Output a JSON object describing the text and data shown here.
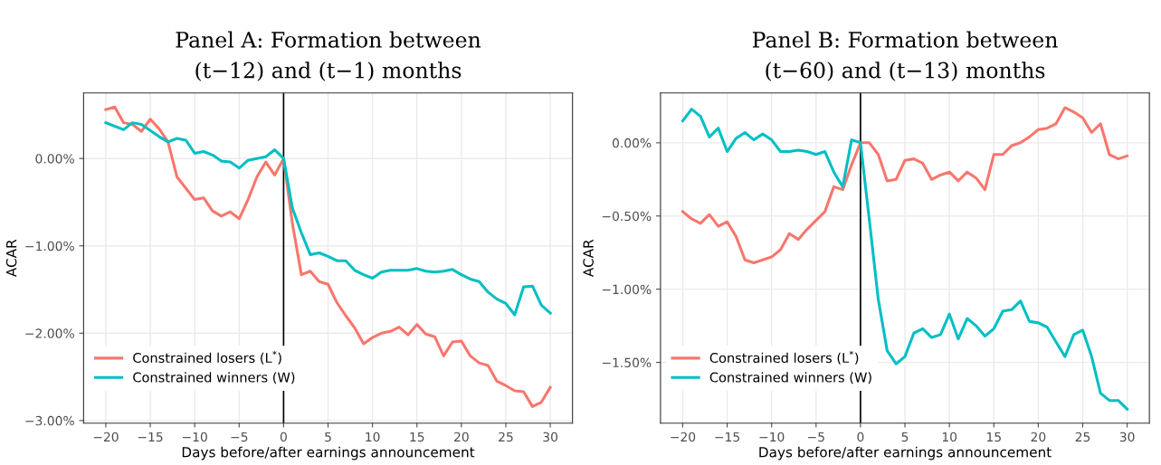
{
  "chart_data": [
    {
      "type": "line",
      "title": "Panel A: Formation between\n(t−12) and (t−1) months",
      "xlabel": "Days before/after earnings announcement",
      "ylabel": "ACAR",
      "x": [
        -20,
        -19,
        -18,
        -17,
        -16,
        -15,
        -14,
        -13,
        -12,
        -11,
        -10,
        -9,
        -8,
        -7,
        -6,
        -5,
        -4,
        -3,
        -2,
        -1,
        0,
        1,
        2,
        3,
        4,
        5,
        6,
        7,
        8,
        9,
        10,
        11,
        12,
        13,
        14,
        15,
        16,
        17,
        18,
        19,
        20,
        21,
        22,
        23,
        24,
        25,
        26,
        27,
        28,
        29,
        30
      ],
      "series": [
        {
          "name": "Constrained losers (L$^{*}$)",
          "color": "#f8766d",
          "values": [
            0.56,
            0.59,
            0.41,
            0.39,
            0.31,
            0.45,
            0.34,
            0.19,
            -0.21,
            -0.34,
            -0.47,
            -0.45,
            -0.6,
            -0.66,
            -0.61,
            -0.69,
            -0.47,
            -0.21,
            -0.04,
            -0.19,
            0,
            -0.75,
            -1.33,
            -1.29,
            -1.41,
            -1.44,
            -1.65,
            -1.8,
            -1.94,
            -2.12,
            -2.05,
            -2.0,
            -1.98,
            -1.93,
            -2.02,
            -1.9,
            -2.01,
            -2.04,
            -2.26,
            -2.1,
            -2.09,
            -2.26,
            -2.34,
            -2.37,
            -2.55,
            -2.6,
            -2.66,
            -2.67,
            -2.84,
            -2.79,
            -2.62
          ]
        },
        {
          "name": "Constrained winners (W)",
          "color": "#00bfc4",
          "values": [
            0.41,
            0.37,
            0.33,
            0.41,
            0.39,
            0.32,
            0.25,
            0.19,
            0.23,
            0.21,
            0.06,
            0.08,
            0.04,
            -0.03,
            -0.04,
            -0.11,
            -0.02,
            0.0,
            0.02,
            0.1,
            0,
            -0.57,
            -0.85,
            -1.1,
            -1.08,
            -1.12,
            -1.17,
            -1.17,
            -1.28,
            -1.33,
            -1.37,
            -1.3,
            -1.28,
            -1.28,
            -1.28,
            -1.26,
            -1.29,
            -1.3,
            -1.29,
            -1.27,
            -1.33,
            -1.38,
            -1.41,
            -1.53,
            -1.61,
            -1.66,
            -1.79,
            -1.47,
            -1.46,
            -1.68,
            -1.77
          ]
        }
      ],
      "xlim": [
        -22.5,
        32.5
      ],
      "ylim": [
        -3.03,
        0.75
      ],
      "xticks": [
        {
          "value": -20,
          "label": "−20"
        },
        {
          "value": -15,
          "label": "−15"
        },
        {
          "value": -10,
          "label": "−10"
        },
        {
          "value": -5,
          "label": "−5"
        },
        0,
        5,
        10,
        15,
        20,
        25,
        30
      ],
      "yticks": [
        {
          "value": -3,
          "label": "−3.00%"
        },
        {
          "value": -2,
          "label": "−2.00%"
        },
        {
          "value": -1,
          "label": "−1.00%"
        },
        {
          "value": 0,
          "label": "0.00%"
        }
      ],
      "ref_lines": [
        {
          "axis": "x",
          "value": 0,
          "color": "#000000"
        }
      ],
      "grid": true,
      "legend": "bottom left",
      "line_style": "solid"
    },
    {
      "type": "line",
      "title": "Panel B: Formation between\n(t−60) and (t−13) months",
      "xlabel": "Days before/after earnings announcement",
      "ylabel": "ACAR",
      "x": [
        -20,
        -19,
        -18,
        -17,
        -16,
        -15,
        -14,
        -13,
        -12,
        -11,
        -10,
        -9,
        -8,
        -7,
        -6,
        -5,
        -4,
        -3,
        -2,
        -1,
        0,
        1,
        2,
        3,
        4,
        5,
        6,
        7,
        8,
        9,
        10,
        11,
        12,
        13,
        14,
        15,
        16,
        17,
        18,
        19,
        20,
        21,
        22,
        23,
        24,
        25,
        26,
        27,
        28,
        29,
        30
      ],
      "series": [
        {
          "name": "Constrained losers (L$^{*}$)",
          "color": "#f8766d",
          "values": [
            -0.47,
            -0.52,
            -0.55,
            -0.49,
            -0.57,
            -0.54,
            -0.64,
            -0.8,
            -0.82,
            -0.8,
            -0.78,
            -0.73,
            -0.62,
            -0.66,
            -0.59,
            -0.53,
            -0.47,
            -0.3,
            -0.32,
            -0.15,
            0,
            0.0,
            -0.08,
            -0.26,
            -0.25,
            -0.12,
            -0.11,
            -0.14,
            -0.25,
            -0.22,
            -0.2,
            -0.26,
            -0.2,
            -0.24,
            -0.32,
            -0.08,
            -0.08,
            -0.02,
            0.0,
            0.04,
            0.09,
            0.1,
            0.13,
            0.24,
            0.21,
            0.17,
            0.07,
            0.13,
            -0.08,
            -0.11,
            -0.09
          ]
        },
        {
          "name": "Constrained winners (W)",
          "color": "#00bfc4",
          "values": [
            0.15,
            0.23,
            0.18,
            0.04,
            0.1,
            -0.06,
            0.03,
            0.07,
            0.02,
            0.06,
            0.02,
            -0.06,
            -0.06,
            -0.05,
            -0.06,
            -0.08,
            -0.06,
            -0.2,
            -0.3,
            0.02,
            0,
            -0.53,
            -1.07,
            -1.42,
            -1.51,
            -1.46,
            -1.3,
            -1.27,
            -1.33,
            -1.31,
            -1.17,
            -1.34,
            -1.2,
            -1.25,
            -1.32,
            -1.27,
            -1.15,
            -1.14,
            -1.08,
            -1.22,
            -1.23,
            -1.26,
            -1.36,
            -1.46,
            -1.31,
            -1.28,
            -1.46,
            -1.71,
            -1.76,
            -1.76,
            -1.82
          ]
        }
      ],
      "xlim": [
        -22.5,
        32.5
      ],
      "ylim": [
        -1.915,
        0.34
      ],
      "xticks": [
        {
          "value": -20,
          "label": "−20"
        },
        {
          "value": -15,
          "label": "−15"
        },
        {
          "value": -10,
          "label": "−10"
        },
        {
          "value": -5,
          "label": "−5"
        },
        0,
        5,
        10,
        15,
        20,
        25,
        30
      ],
      "yticks": [
        {
          "value": -1.5,
          "label": "−1.50%"
        },
        {
          "value": -1,
          "label": "−1.00%"
        },
        {
          "value": -0.5,
          "label": "−0.50%"
        },
        {
          "value": 0,
          "label": "0.00%"
        }
      ],
      "ref_lines": [
        {
          "axis": "x",
          "value": 0,
          "color": "#000000"
        }
      ],
      "grid": true,
      "legend": "bottom left",
      "line_style": "solid"
    }
  ]
}
